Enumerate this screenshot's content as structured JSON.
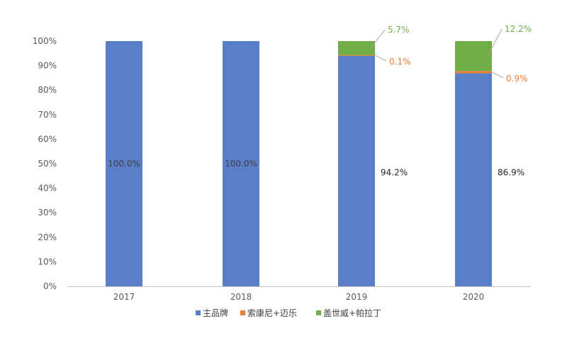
{
  "chart_data": {
    "type": "bar",
    "stacked": true,
    "categories": [
      "2017",
      "2018",
      "2019",
      "2020"
    ],
    "series": [
      {
        "name": "主品牌",
        "color": "#5b7ec8",
        "values": [
          100.0,
          100.0,
          94.2,
          86.9
        ],
        "labels": [
          "100.0%",
          "100.0%",
          "94.2%",
          "86.9%"
        ]
      },
      {
        "name": "索康尼+迈乐",
        "color": "#ed7d31",
        "values": [
          0,
          0,
          0.1,
          0.9
        ],
        "labels": [
          "",
          "",
          "0.1%",
          "0.9%"
        ]
      },
      {
        "name": "盖世威+帕拉丁",
        "color": "#70ad47",
        "values": [
          0,
          0,
          5.7,
          12.2
        ],
        "labels": [
          "",
          "",
          "5.7%",
          "12.2%"
        ]
      }
    ],
    "y_ticks": [
      "0%",
      "10%",
      "20%",
      "30%",
      "40%",
      "50%",
      "60%",
      "70%",
      "80%",
      "90%",
      "100%"
    ],
    "ylim": [
      0,
      100
    ],
    "grid": false,
    "legend_position": "bottom"
  }
}
